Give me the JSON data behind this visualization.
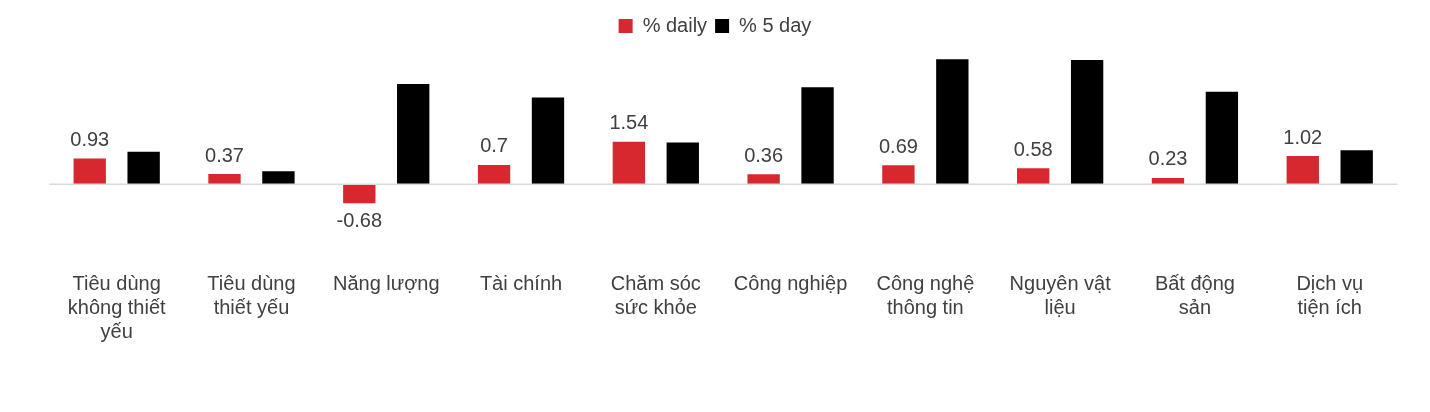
{
  "chart_data": {
    "type": "bar",
    "categories": [
      "Tiêu dùng không thiết yếu",
      "Tiêu dùng thiết yếu",
      "Năng lượng",
      "Tài chính",
      "Chăm sóc sức khỏe",
      "Công nghiệp",
      "Công nghệ thông tin",
      "Nguyên vật liệu",
      "Bất động sản",
      "Dịch vụ tiện ích"
    ],
    "series": [
      {
        "name": "% daily",
        "color": "#d7282f",
        "values": [
          0.93,
          0.37,
          -0.68,
          0.7,
          1.54,
          0.36,
          0.69,
          0.58,
          0.23,
          1.02
        ],
        "value_labels": [
          "0.93",
          "0.37",
          "-0.68",
          "0.7",
          "1.54",
          "0.36",
          "0.69",
          "0.58",
          "0.23",
          "1.02"
        ]
      },
      {
        "name": "% 5 day",
        "color": "#000000",
        "values": [
          1.18,
          0.47,
          3.63,
          3.14,
          1.51,
          3.51,
          4.52,
          4.49,
          3.35,
          1.23
        ]
      }
    ],
    "legend": "top",
    "grid": false
  }
}
